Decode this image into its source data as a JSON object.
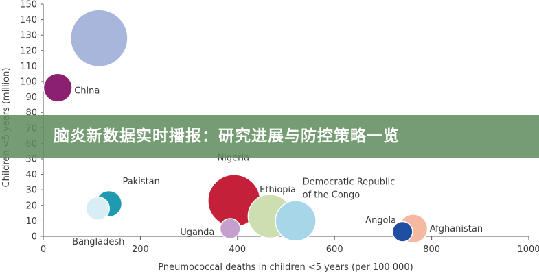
{
  "chart_data": {
    "type": "scatter",
    "xlabel": "Pneumococcal deaths in children <5 years (per 100 000)",
    "ylabel": "Children <5 years (million)",
    "xlim": [
      0,
      1000
    ],
    "ylim": [
      0,
      150
    ],
    "x_ticks": [
      0,
      200,
      400,
      600,
      800,
      1000
    ],
    "y_ticks": [
      0,
      10,
      20,
      30,
      40,
      50,
      60,
      70,
      80,
      90,
      100,
      110,
      120,
      130,
      140,
      150
    ],
    "grid": false,
    "points": [
      {
        "label": "India",
        "x": 115,
        "y": 128,
        "size": 24,
        "color": "#a9b6dc"
      },
      {
        "label": "China",
        "x": 30,
        "y": 96,
        "size": 6,
        "color": "#8c2070"
      },
      {
        "label": "Pakistan",
        "x": 135,
        "y": 21,
        "size": 5,
        "color": "#1f9ab0"
      },
      {
        "label": "Bangladesh",
        "x": 112,
        "y": 18,
        "size": 4,
        "color": "#d9eef4"
      },
      {
        "label": "Nigeria",
        "x": 393,
        "y": 23,
        "size": 20,
        "color": "#c4203a"
      },
      {
        "label": "Uganda",
        "x": 385,
        "y": 5,
        "size": 3,
        "color": "#c6a0cc"
      },
      {
        "label": "Ethiopia",
        "x": 467,
        "y": 13,
        "size": 14,
        "color": "#cddfb0"
      },
      {
        "label": "Democratic Republic of the Congo",
        "x": 520,
        "y": 10,
        "size": 12,
        "color": "#a6d6e8"
      },
      {
        "label": "Angola",
        "x": 740,
        "y": 3,
        "size": 3,
        "color": "#1f4fa0"
      },
      {
        "label": "Afghanistan",
        "x": 762,
        "y": 5,
        "size": 6,
        "color": "#f5b8a0"
      }
    ]
  },
  "banner": {
    "title": "脑炎新数据实时播报：研究进展与防控策略一览"
  }
}
